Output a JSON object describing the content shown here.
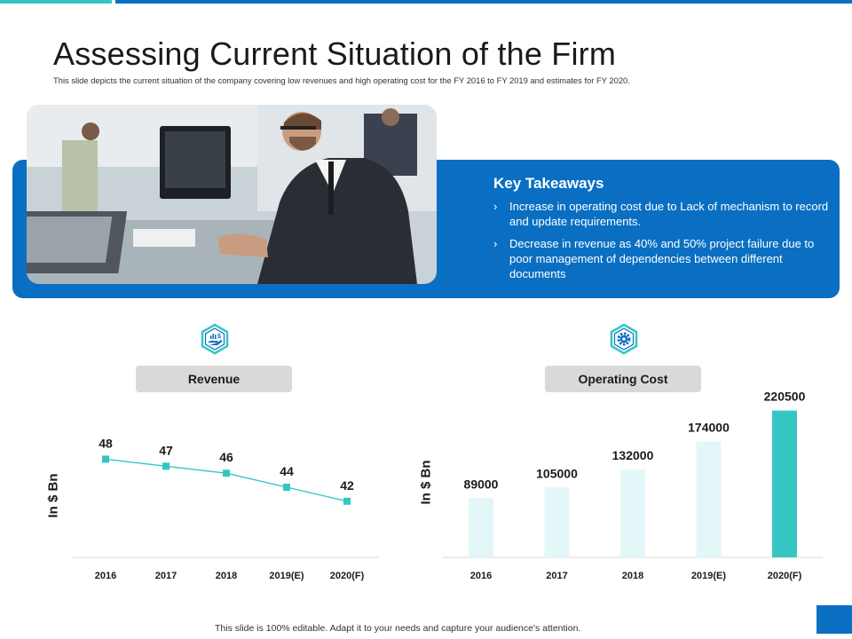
{
  "header": {
    "title": "Assessing Current Situation of the Firm",
    "subtitle": "This slide depicts the current situation of the company covering low revenues and high operating cost for the FY 2016 to FY 2019 and estimates for FY 2020."
  },
  "takeaways": {
    "title": "Key Takeaways",
    "items": [
      "Increase in operating cost due to Lack of mechanism to record and update requirements.",
      "Decrease in revenue as 40%  and  50% project failure due to poor management of dependencies between different documents"
    ]
  },
  "revenue": {
    "label": "Revenue",
    "icon": "money-hand-icon",
    "ylabel": "In $ Bn"
  },
  "operating_cost": {
    "label": "Operating Cost",
    "icon": "gear-icon",
    "ylabel": "In $ Bn"
  },
  "footer": {
    "note": "This slide is 100% editable. Adapt it to your needs and capture your audience's attention."
  },
  "colors": {
    "accent_blue": "#0a6fc2",
    "accent_teal": "#35c6c4",
    "bar_light": "#e4f7f8",
    "line_color": "#35c6c4"
  },
  "chart_data": [
    {
      "type": "line",
      "title": "Revenue",
      "ylabel": "In $ Bn",
      "categories": [
        "2016",
        "2017",
        "2018",
        "2019(E)",
        "2020(F)"
      ],
      "values": [
        48,
        47,
        46,
        44,
        42
      ],
      "ylim": [
        34,
        54
      ],
      "grid": false
    },
    {
      "type": "bar",
      "title": "Operating Cost",
      "ylabel": "In $ Bn",
      "categories": [
        "2016",
        "2017",
        "2018",
        "2019(E)",
        "2020(F)"
      ],
      "values": [
        89000,
        105000,
        132000,
        174000,
        220500
      ],
      "ylim": [
        0,
        240000
      ],
      "highlight_index": 4,
      "grid": false
    }
  ]
}
